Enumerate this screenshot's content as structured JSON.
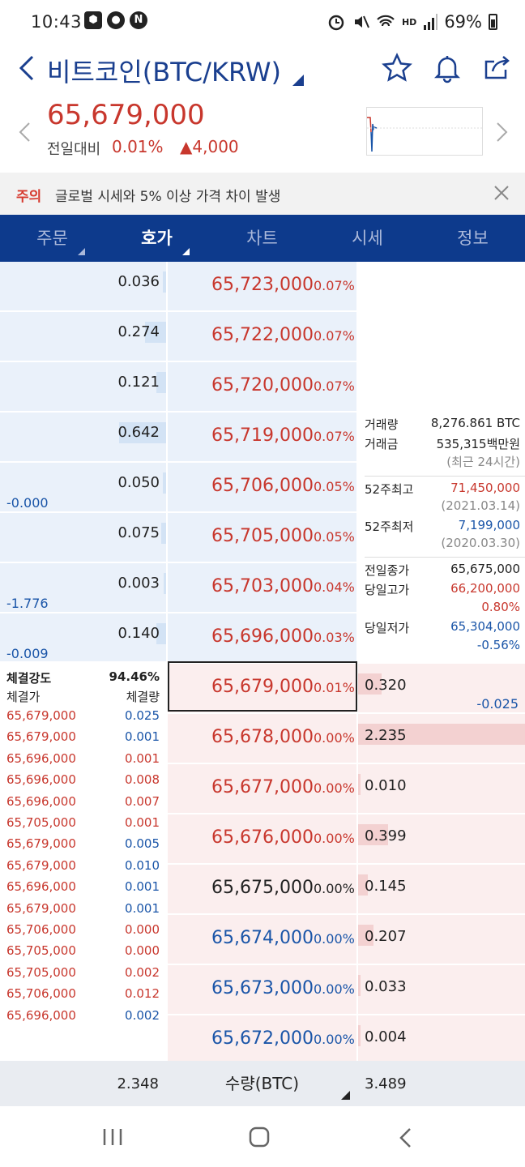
{
  "status": {
    "time": "10:43",
    "hd": "HD",
    "battery": "69%"
  },
  "header": {
    "title": "비트코인(BTC/KRW)"
  },
  "price": {
    "current": "65,679,000",
    "diff_label": "전일대비",
    "diff_pct": "0.01%",
    "diff_val": "▲4,000"
  },
  "notice": {
    "label": "주의",
    "text": "글로벌 시세와 5% 이상 가격 차이 발생"
  },
  "tabs": [
    {
      "label": "주문"
    },
    {
      "label": "호가"
    },
    {
      "label": "차트"
    },
    {
      "label": "시세"
    },
    {
      "label": "정보"
    }
  ],
  "asks": [
    {
      "qty": "0.036",
      "qfrac": 0.02,
      "price": "65,723,000",
      "pct": "0.07%",
      "chg": ""
    },
    {
      "qty": "0.274",
      "qfrac": 0.13,
      "price": "65,722,000",
      "pct": "0.07%",
      "chg": ""
    },
    {
      "qty": "0.121",
      "qfrac": 0.06,
      "price": "65,720,000",
      "pct": "0.07%",
      "chg": ""
    },
    {
      "qty": "0.642",
      "qfrac": 0.29,
      "price": "65,719,000",
      "pct": "0.07%",
      "chg": ""
    },
    {
      "qty": "0.050",
      "qfrac": 0.02,
      "price": "65,706,000",
      "pct": "0.05%",
      "chg": "-0.000"
    },
    {
      "qty": "0.075",
      "qfrac": 0.03,
      "price": "65,705,000",
      "pct": "0.05%",
      "chg": ""
    },
    {
      "qty": "0.003",
      "qfrac": 0.0,
      "price": "65,703,000",
      "pct": "0.04%",
      "chg": "-1.776"
    },
    {
      "qty": "0.140",
      "qfrac": 0.06,
      "price": "65,696,000",
      "pct": "0.03%",
      "chg": "-0.009"
    }
  ],
  "bids": [
    {
      "qty": "0.320",
      "qfrac": 0.14,
      "price": "65,679,000",
      "pct": "0.01%",
      "chg": "-0.025",
      "color": "red"
    },
    {
      "qty": "2.235",
      "qfrac": 1.0,
      "price": "65,678,000",
      "pct": "0.00%",
      "chg": "",
      "color": "red"
    },
    {
      "qty": "0.010",
      "qfrac": 0.01,
      "price": "65,677,000",
      "pct": "0.00%",
      "chg": "",
      "color": "red"
    },
    {
      "qty": "0.399",
      "qfrac": 0.18,
      "price": "65,676,000",
      "pct": "0.00%",
      "chg": "",
      "color": "red"
    },
    {
      "qty": "0.145",
      "qfrac": 0.06,
      "price": "65,675,000",
      "pct": "0.00%",
      "chg": "",
      "color": "blk"
    },
    {
      "qty": "0.207",
      "qfrac": 0.09,
      "price": "65,674,000",
      "pct": "0.00%",
      "chg": "",
      "color": "blue"
    },
    {
      "qty": "0.033",
      "qfrac": 0.01,
      "price": "65,673,000",
      "pct": "0.00%",
      "chg": "",
      "color": "blue"
    },
    {
      "qty": "0.004",
      "qfrac": 0.0,
      "price": "65,672,000",
      "pct": "0.00%",
      "chg": "",
      "color": "blue"
    }
  ],
  "info": {
    "vol_label": "거래량",
    "vol": "8,276.861 BTC",
    "amt_label": "거래금",
    "amt": "535,315백만원",
    "recent": "(최근 24시간)",
    "high52_label": "52주최고",
    "high52": "71,450,000",
    "high52_date": "(2021.03.14)",
    "low52_label": "52주최저",
    "low52": "7,199,000",
    "low52_date": "(2020.03.30)",
    "prev_label": "전일종가",
    "prev": "65,675,000",
    "dhigh_label": "당일고가",
    "dhigh": "66,200,000",
    "dhigh_pct": "0.80%",
    "dlow_label": "당일저가",
    "dlow": "65,304,000",
    "dlow_pct": "-0.56%"
  },
  "trades": {
    "strength_label": "체결강도",
    "strength": "94.46%",
    "price_label": "체결가",
    "qty_label": "체결량",
    "rows": [
      {
        "p": "65,679,000",
        "q": "0.025",
        "c": "blue"
      },
      {
        "p": "65,679,000",
        "q": "0.001",
        "c": "blue"
      },
      {
        "p": "65,696,000",
        "q": "0.001",
        "c": "red"
      },
      {
        "p": "65,696,000",
        "q": "0.008",
        "c": "red"
      },
      {
        "p": "65,696,000",
        "q": "0.007",
        "c": "red"
      },
      {
        "p": "65,705,000",
        "q": "0.001",
        "c": "red"
      },
      {
        "p": "65,679,000",
        "q": "0.005",
        "c": "blue"
      },
      {
        "p": "65,679,000",
        "q": "0.010",
        "c": "blue"
      },
      {
        "p": "65,696,000",
        "q": "0.001",
        "c": "blue"
      },
      {
        "p": "65,679,000",
        "q": "0.001",
        "c": "blue"
      },
      {
        "p": "65,706,000",
        "q": "0.000",
        "c": "red"
      },
      {
        "p": "65,705,000",
        "q": "0.000",
        "c": "red"
      },
      {
        "p": "65,705,000",
        "q": "0.002",
        "c": "red"
      },
      {
        "p": "65,706,000",
        "q": "0.012",
        "c": "red"
      },
      {
        "p": "65,696,000",
        "q": "0.002",
        "c": "blue"
      }
    ]
  },
  "footer": {
    "ask_total": "2.348",
    "unit": "수량(BTC)",
    "bid_total": "3.489"
  }
}
